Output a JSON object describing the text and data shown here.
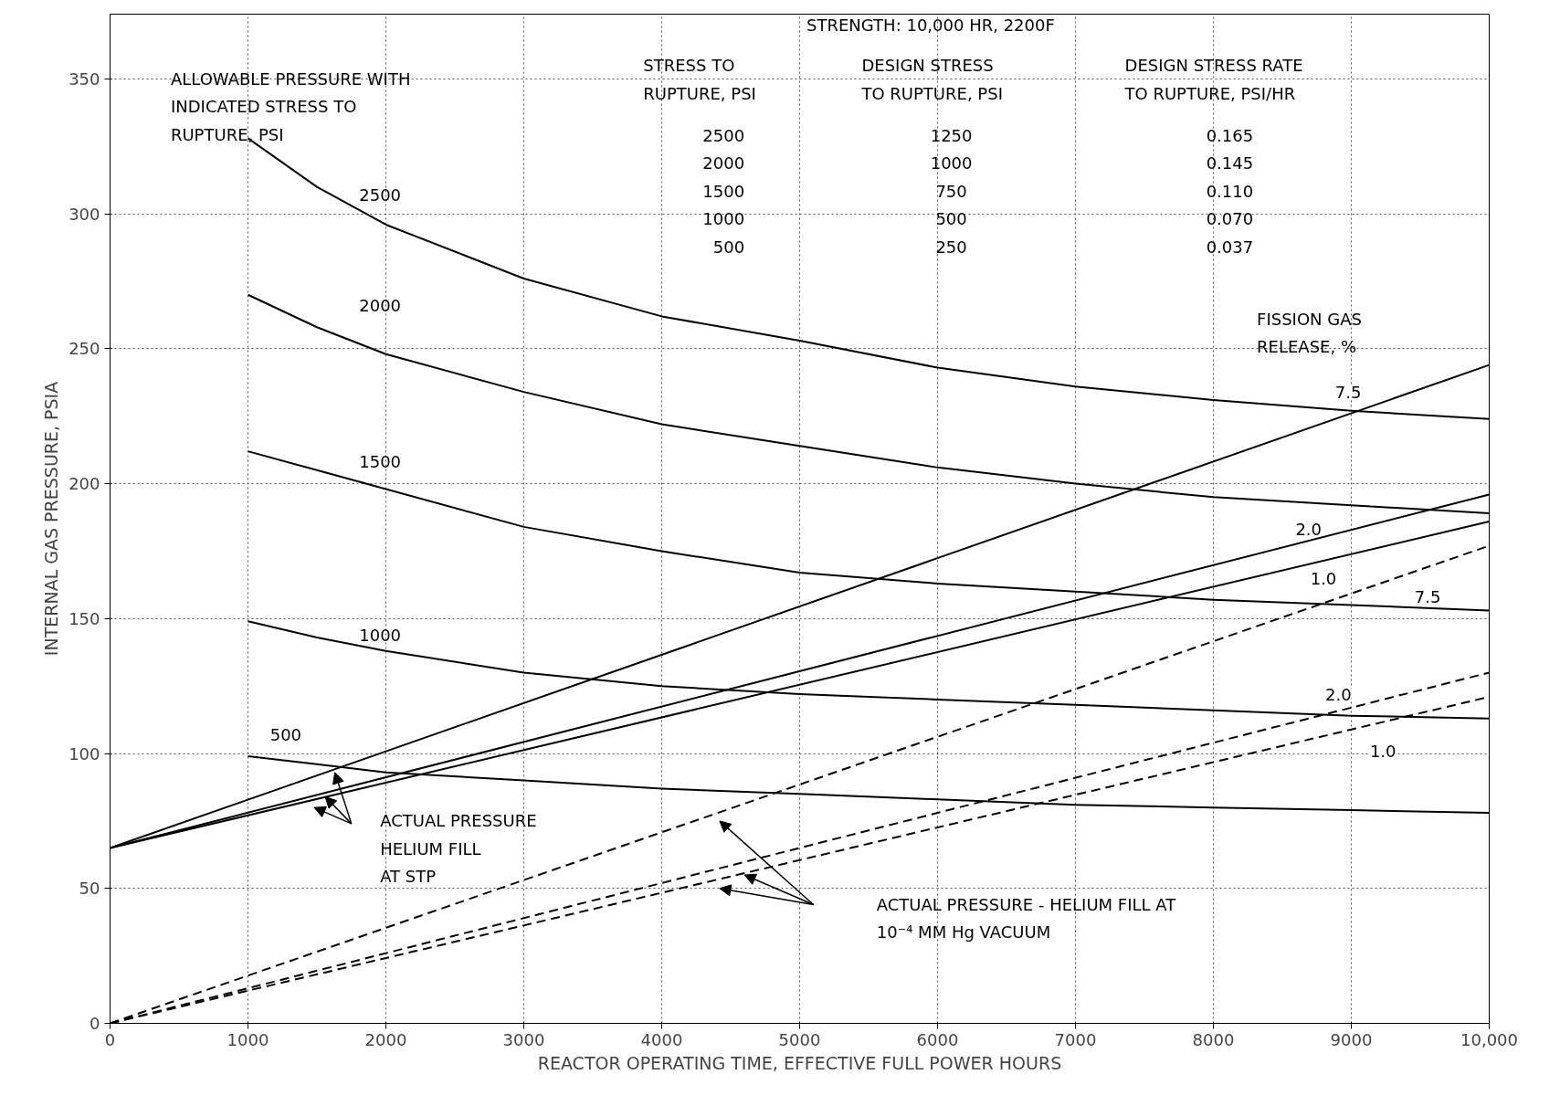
{
  "chart_data": {
    "type": "line",
    "xlabel": "REACTOR OPERATING TIME, EFFECTIVE FULL POWER HOURS",
    "ylabel": "INTERNAL GAS PRESSURE, PSIA",
    "xlim": [
      0,
      10000
    ],
    "ylim": [
      0,
      374
    ],
    "xticks": [
      0,
      1000,
      2000,
      3000,
      4000,
      5000,
      6000,
      7000,
      8000,
      9000,
      {
        "value": 10000,
        "label": "10,000"
      }
    ],
    "yticks": [
      0,
      50,
      100,
      150,
      200,
      250,
      300,
      350
    ],
    "grid": true,
    "line_style": "solid",
    "series": [
      {
        "color": "#000000",
        "x": [
          1000,
          1500,
          2000,
          3000,
          4000,
          5000,
          6000,
          7000,
          8000,
          9000,
          10000
        ],
        "values": [
          328,
          310,
          296,
          276,
          262,
          253,
          243,
          236,
          231,
          227,
          224
        ]
      },
      {
        "color": "#000000",
        "x": [
          1000,
          1500,
          2000,
          3000,
          4000,
          5000,
          6000,
          7000,
          8000,
          9000,
          10000
        ],
        "values": [
          270,
          258,
          248,
          234,
          222,
          214,
          206,
          200,
          195,
          192,
          189
        ]
      },
      {
        "color": "#000000",
        "x": [
          1000,
          1500,
          2000,
          3000,
          4000,
          5000,
          6000,
          7000,
          8000,
          9000,
          10000
        ],
        "values": [
          212,
          205,
          198,
          184,
          175,
          167,
          163,
          160,
          157,
          155,
          153
        ]
      },
      {
        "color": "#000000",
        "x": [
          1000,
          1500,
          2000,
          3000,
          4000,
          5000,
          6000,
          7000,
          8000,
          9000,
          10000
        ],
        "values": [
          149,
          143,
          138,
          130,
          125,
          122,
          120,
          118,
          116,
          114,
          113
        ]
      },
      {
        "color": "#000000",
        "x": [
          1000,
          1500,
          2000,
          3000,
          4000,
          5000,
          6000,
          7000,
          8000,
          9000,
          10000
        ],
        "values": [
          99,
          96,
          93,
          90,
          87,
          85,
          83,
          81,
          80,
          79,
          78
        ]
      },
      {
        "color": "#000000",
        "x": [
          0,
          10000
        ],
        "values": [
          65,
          244
        ]
      },
      {
        "color": "#000000",
        "x": [
          0,
          10000
        ],
        "values": [
          65,
          196
        ]
      },
      {
        "color": "#000000",
        "x": [
          0,
          10000
        ],
        "values": [
          65,
          186
        ]
      },
      {
        "color": "#000000",
        "line_style": "dashed",
        "x": [
          0,
          10000
        ],
        "values": [
          0,
          177
        ]
      },
      {
        "color": "#000000",
        "line_style": "dashed",
        "x": [
          0,
          10000
        ],
        "values": [
          0,
          130
        ]
      },
      {
        "color": "#000000",
        "line_style": "dashed",
        "x": [
          0,
          10000
        ],
        "values": [
          0,
          121
        ]
      }
    ],
    "annotations": [
      "STRENGTH: 10,000 HR, 2200F",
      "ALLOWABLE PRESSURE WITH\nINDICATED STRESS TO\nRUPTURE, PSI",
      "STRESS TO\nRUPTURE, PSI",
      "2500\n2000\n1500\n1000\n500",
      "DESIGN STRESS\nTO RUPTURE, PSI",
      "1250\n1000\n750\n500\n250",
      "DESIGN STRESS RATE\nTO RUPTURE, PSI/HR",
      "0.165\n0.145\n0.110\n0.070\n0.037",
      "FISSION GAS\nRELEASE, %",
      "ACTUAL PRESSURE\nHELIUM FILL\nAT STP",
      "ACTUAL PRESSURE - HELIUM FILL AT\n10⁻⁴ MM Hg VACUUM",
      "2500",
      "2000",
      "1500",
      "1000",
      {
        "text": "500",
        "x": 1274,
        "y": 107
      },
      {
        "text": "7.5",
        "x": 8978,
        "y": 234
      },
      {
        "text": "2.0",
        "x": 8690,
        "y": 183
      },
      {
        "text": "1.0",
        "x": 8798,
        "y": 165
      },
      {
        "text": "7.5",
        "x": 9554,
        "y": 158
      },
      {
        "text": "2.0",
        "x": 8906,
        "y": 122
      },
      {
        "text": "1.0",
        "x": 9230,
        "y": 101
      }
    ]
  }
}
